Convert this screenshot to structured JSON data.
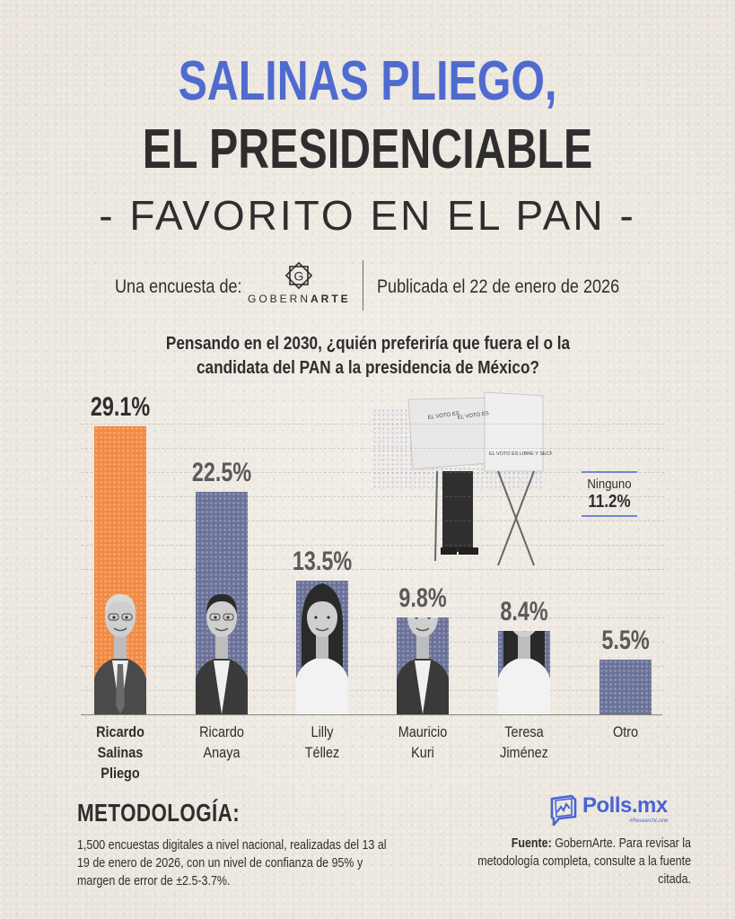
{
  "header": {
    "title_line1": "SALINAS PLIEGO,",
    "title_line2": "EL PRESIDENCIABLE",
    "title_line3": "FAVORITO EN EL PAN",
    "title_dash": "-",
    "colors": {
      "accent_blue": "#4F6BD0",
      "dark_text": "#2E2E2E"
    }
  },
  "source_row": {
    "survey_by_label": "Una encuesta de:",
    "pollster_name_light": "GOBERN",
    "pollster_name_bold": "ARTE",
    "pollster_logo_icon": "diamond-g-icon",
    "published_label": "Publicada el 22 de enero de 2026"
  },
  "chart_data": {
    "type": "bar",
    "title": "Pensando en el 2030, ¿quién preferiría que fuera el o la candidata del PAN a la presidencia de México?",
    "xlabel": "",
    "ylabel": "",
    "ylim": [
      0,
      30
    ],
    "grid": true,
    "unit": "%",
    "categories": [
      "Ricardo Salinas Pliego",
      "Ricardo Anaya",
      "Lilly Téllez",
      "Mauricio Kuri",
      "Teresa Jiménez",
      "Otro"
    ],
    "category_lines": [
      [
        "Ricardo",
        "Salinas",
        "Pliego"
      ],
      [
        "Ricardo",
        "Anaya"
      ],
      [
        "Lilly",
        "Téllez"
      ],
      [
        "Mauricio",
        "Kuri"
      ],
      [
        "Teresa",
        "Jiménez"
      ],
      [
        "Otro"
      ]
    ],
    "values": [
      29.1,
      22.5,
      13.5,
      9.8,
      8.4,
      5.5
    ],
    "value_labels": [
      "29.1%",
      "22.5%",
      "13.5%",
      "9.8%",
      "8.4%",
      "5.5%"
    ],
    "bar_colors": [
      "#F08A45",
      "#6B7298",
      "#6B7298",
      "#6B7298",
      "#6B7298",
      "#6B7298"
    ],
    "highlighted": [
      true,
      false,
      false,
      false,
      false,
      false
    ],
    "has_photo": [
      true,
      true,
      true,
      true,
      true,
      false
    ],
    "annotations": [
      {
        "label": "Ninguno",
        "value": 11.2,
        "value_label": "11.2%"
      }
    ]
  },
  "illustration": {
    "description": "voting-booth-icon",
    "booth_texts": [
      "EL VOTO ES LIBRE Y SECRETO",
      "EL VOTO ES LIBRE Y SECRETO",
      "EL VOTO ES LIBRE Y SECRETO"
    ]
  },
  "methodology": {
    "title": "METODOLOGÍA:",
    "text": "1,500 encuestas digitales a nivel nacional, realizadas del 13 al 19 de enero de 2026, con un nivel de confianza de 95% y margen de error de ±2.5-3.7%."
  },
  "footer": {
    "brand_name": "Polls.mx",
    "brand_tagline": "#ResearchLover",
    "brand_icon": "chart-window-icon",
    "brand_color": "#4A63D4",
    "source_label": "Fuente:",
    "source_text": "GobernArte. Para revisar la metodología completa, consulte a la fuente citada."
  }
}
